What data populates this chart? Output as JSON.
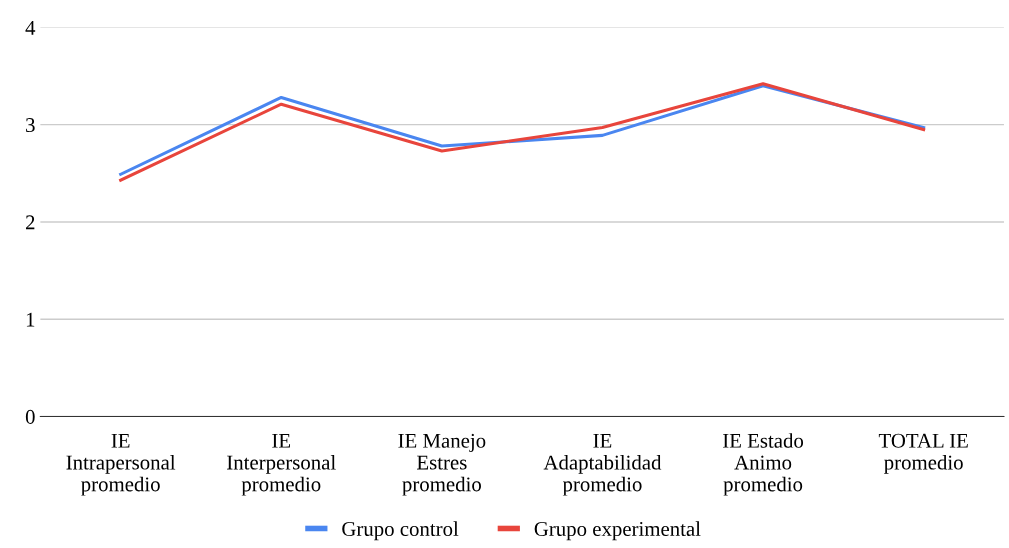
{
  "chart_data": {
    "type": "line",
    "categories": [
      "IE\nIntrapersonal\npromedio",
      "IE\nInterpersonal\npromedio",
      "IE Manejo\nEstres\npromedio",
      "IE\nAdaptabilidad\npromedio",
      "IE Estado\nAnimo\npromedio",
      "TOTAL IE\npromedio"
    ],
    "series": [
      {
        "name": "Grupo control",
        "color": "#4a86f0",
        "values": [
          2.49,
          3.28,
          2.78,
          2.89,
          3.4,
          2.97
        ]
      },
      {
        "name": "Grupo experimental",
        "color": "#e8453c",
        "values": [
          2.43,
          3.21,
          2.73,
          2.97,
          3.42,
          2.95
        ]
      }
    ],
    "ylim": [
      0,
      4
    ],
    "yticks": [
      0,
      1,
      2,
      3,
      4
    ],
    "grid": "y",
    "legend": "bottom",
    "marker": "none",
    "line_style": "solid"
  }
}
